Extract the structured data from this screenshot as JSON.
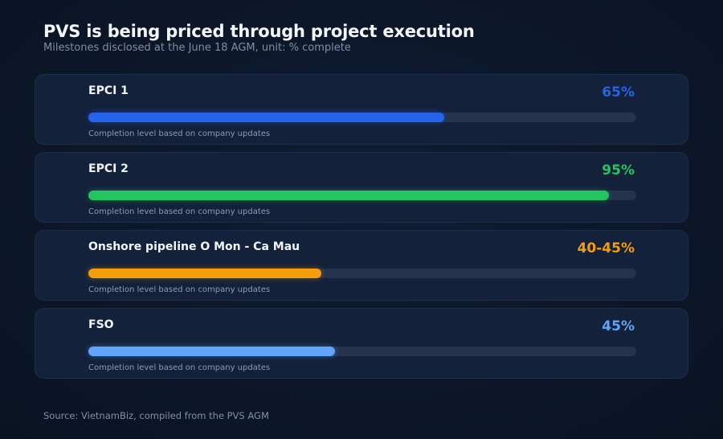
{
  "chart_data": {
    "type": "bar",
    "title": "PVS is being priced through project execution",
    "subtitle": "Milestones disclosed at the June 18 AGM, unit: % complete",
    "xlim": [
      0,
      100
    ],
    "note": "Completion level based on company updates",
    "source": "Source: VietnamBiz, compiled from the PVS AGM",
    "items": [
      {
        "label": "EPCI 1",
        "value": 65,
        "display": "65%",
        "color": "#2563eb"
      },
      {
        "label": "EPCI 2",
        "value": 95,
        "display": "95%",
        "color": "#22c55e"
      },
      {
        "label": "Onshore pipeline O Mon - Ca Mau",
        "value": 42.5,
        "display": "40-45%",
        "color": "#f59e0b"
      },
      {
        "label": "FSO",
        "value": 45,
        "display": "45%",
        "color": "#60a5fa"
      }
    ]
  }
}
